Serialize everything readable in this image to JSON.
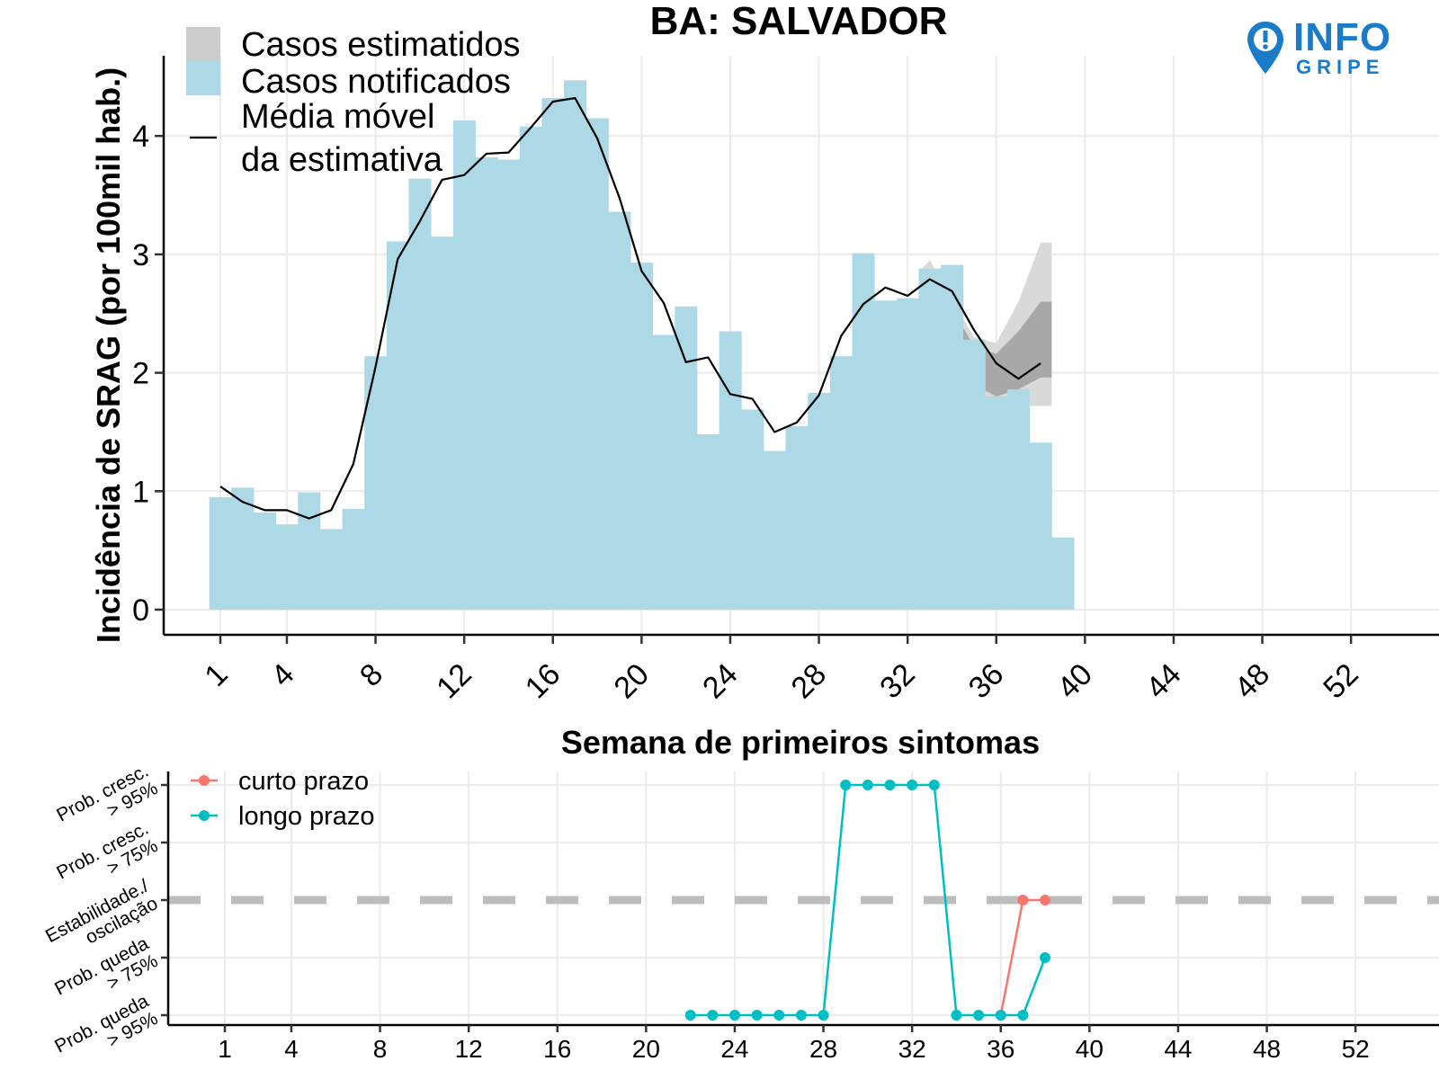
{
  "logo": {
    "main": "INFO",
    "sub": "GRIPE"
  },
  "chart_data": [
    {
      "type": "bar",
      "title": "BA: SALVADOR",
      "xlabel": "Semana de primeiros sintomas",
      "ylabel": "Incidência de SRAG (por 100mil hab.)",
      "xlim": [
        -1,
        53
      ],
      "ylim": [
        -0.2,
        4.7
      ],
      "grid": true,
      "x_ticks": [
        1,
        4,
        8,
        12,
        16,
        20,
        24,
        28,
        32,
        36,
        40,
        44,
        48,
        52
      ],
      "y_ticks": [
        0,
        1,
        2,
        3,
        4
      ],
      "legend": {
        "placement": "top-left",
        "items": [
          "Casos estimatidos",
          "Casos notificados",
          "Média móvel",
          "da estimativa"
        ]
      },
      "colors": {
        "notified": "#add8e6",
        "estimated": "#cccccc",
        "ribbon_outer": "#d9d9d9",
        "ribbon_inner": "#a8a8a8",
        "line": "#000000"
      },
      "weeks": [
        1,
        2,
        3,
        4,
        5,
        6,
        7,
        8,
        9,
        10,
        11,
        12,
        13,
        14,
        15,
        16,
        17,
        18,
        19,
        20,
        21,
        22,
        23,
        24,
        25,
        26,
        27,
        28,
        29,
        30,
        31,
        32,
        33,
        34,
        35,
        36,
        37,
        38,
        39
      ],
      "notified": [
        0.95,
        1.03,
        0.82,
        0.72,
        0.99,
        0.68,
        0.85,
        2.14,
        3.11,
        3.64,
        3.15,
        4.13,
        3.82,
        3.8,
        4.08,
        4.32,
        4.47,
        4.15,
        3.36,
        2.93,
        2.32,
        2.56,
        1.48,
        2.35,
        1.69,
        1.34,
        1.55,
        1.83,
        2.14,
        3.01,
        2.61,
        2.63,
        2.88,
        2.91,
        2.28,
        1.8,
        1.86,
        1.41,
        0.61
      ],
      "estimated": [
        0.95,
        1.03,
        0.82,
        0.72,
        0.99,
        0.68,
        0.85,
        2.14,
        3.11,
        3.64,
        3.15,
        4.13,
        3.82,
        3.8,
        4.08,
        4.32,
        4.47,
        4.15,
        3.36,
        2.93,
        2.32,
        2.56,
        1.48,
        2.35,
        1.69,
        1.34,
        1.55,
        1.83,
        2.14,
        3.01,
        2.61,
        2.63,
        2.88,
        2.91,
        2.28,
        1.8,
        1.86,
        1.41,
        0.61
      ],
      "moving_average": {
        "weeks": [
          1,
          2,
          3,
          4,
          5,
          6,
          7,
          8,
          9,
          10,
          11,
          12,
          13,
          14,
          15,
          16,
          17,
          18,
          19,
          20,
          21,
          22,
          23,
          24,
          25,
          26,
          27,
          28,
          29,
          30,
          31,
          32,
          33,
          34,
          35,
          36,
          37,
          38
        ],
        "values": [
          1.04,
          0.91,
          0.84,
          0.84,
          0.77,
          0.84,
          1.23,
          2.05,
          2.96,
          3.28,
          3.63,
          3.67,
          3.85,
          3.86,
          4.07,
          4.29,
          4.32,
          3.98,
          3.48,
          2.86,
          2.59,
          2.09,
          2.13,
          1.82,
          1.78,
          1.5,
          1.58,
          1.81,
          2.31,
          2.58,
          2.72,
          2.65,
          2.79,
          2.69,
          2.36,
          2.08,
          1.95,
          2.08
        ]
      },
      "uncertainty": {
        "weeks": [
          32.5,
          33,
          34,
          35,
          36,
          37,
          38,
          38.5
        ],
        "outer_low": [
          2.7,
          2.66,
          2.2,
          1.85,
          1.7,
          1.72,
          1.72,
          1.72
        ],
        "outer_high": [
          2.85,
          2.95,
          2.62,
          2.3,
          2.25,
          2.6,
          3.1,
          3.1
        ],
        "inner_low": [
          2.72,
          2.72,
          2.26,
          1.9,
          1.8,
          1.86,
          1.96,
          1.96
        ],
        "inner_high": [
          2.82,
          2.88,
          2.55,
          2.22,
          2.16,
          2.35,
          2.6,
          2.6
        ]
      }
    },
    {
      "type": "line",
      "xlabel": "",
      "ylabel": "",
      "xlim": [
        -1,
        53
      ],
      "grid": true,
      "x_ticks": [
        1,
        4,
        8,
        12,
        16,
        20,
        24,
        28,
        32,
        36,
        40,
        44,
        48,
        52
      ],
      "y_levels": [
        [
          "Prob. cresc.",
          "> 95%"
        ],
        [
          "Prob. cresc.",
          "> 75%"
        ],
        [
          "Estabilidade./",
          "oscilação"
        ],
        [
          "Prob. queda",
          "> 75%"
        ],
        [
          "Prob. queda",
          "> 95%"
        ]
      ],
      "y_values_meaning": "2 = Prob. cresc. > 95%, 1 = Prob. cresc. > 75%, 0 = Estabilidade./oscilação, -1 = Prob. queda > 75%, -2 = Prob. queda > 95%",
      "legend": {
        "placement": "top-left"
      },
      "series": [
        {
          "name": "curto prazo",
          "color": "#f8766d",
          "x": [
            36,
            37,
            38
          ],
          "y": [
            -2,
            0,
            0
          ]
        },
        {
          "name": "longo prazo",
          "color": "#00bfc4",
          "x": [
            22,
            23,
            24,
            25,
            26,
            27,
            28,
            29,
            30,
            31,
            32,
            33,
            34,
            35,
            36,
            37,
            38
          ],
          "y": [
            -2,
            -2,
            -2,
            -2,
            -2,
            -2,
            -2,
            2,
            2,
            2,
            2,
            2,
            -2,
            -2,
            -2,
            -2,
            -1
          ]
        }
      ]
    }
  ]
}
